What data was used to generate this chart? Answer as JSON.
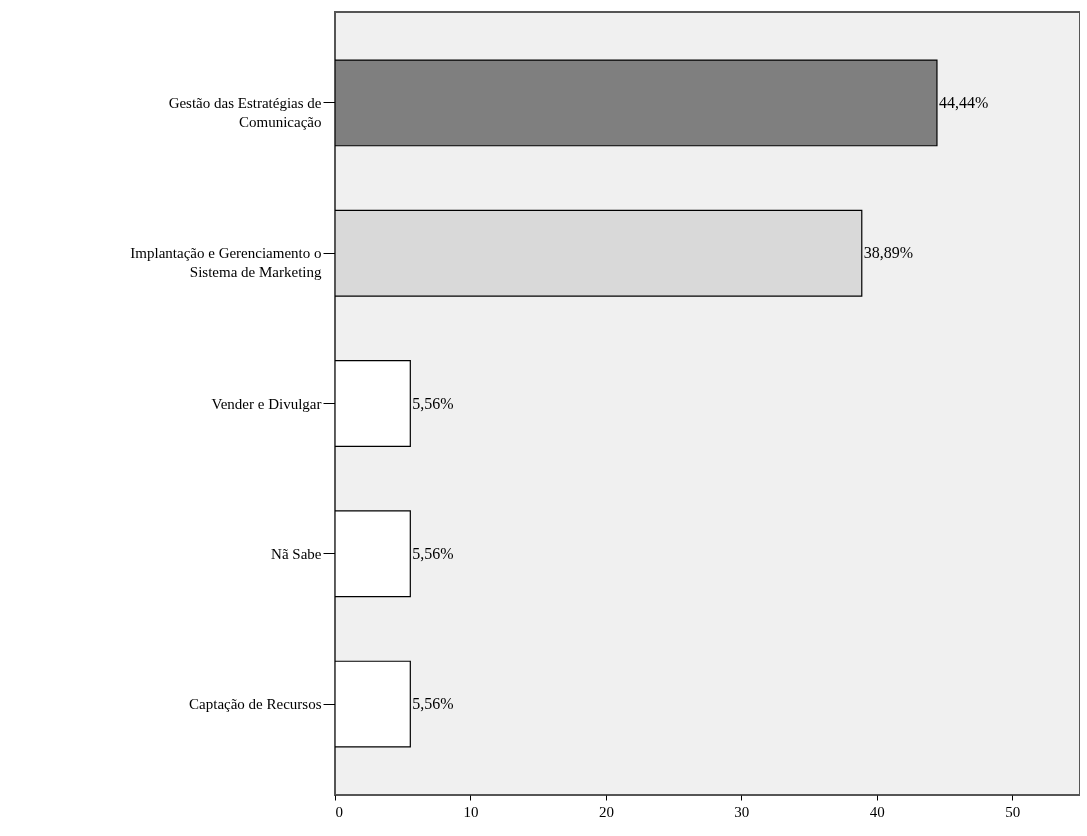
{
  "chart_data": {
    "type": "bar",
    "orientation": "horizontal",
    "categories": [
      "Gestão das Estratégias de Comunicação",
      "Implantação e Gerenciamento o Sistema de Marketing",
      "Vender e Divulgar",
      "Nã Sabe",
      "Captação de Recursos"
    ],
    "values": [
      44.44,
      38.89,
      5.56,
      5.56,
      5.56
    ],
    "value_labels": [
      "44,44%",
      "38,89%",
      "5,56%",
      "5,56%",
      "5,56%"
    ],
    "colors": [
      "#7f7f7f",
      "#d9d9d9",
      "#ffffff",
      "#ffffff",
      "#ffffff"
    ],
    "xlim": [
      0,
      55
    ],
    "xticks": [
      0,
      10,
      20,
      30,
      40,
      50
    ],
    "grid": false
  }
}
